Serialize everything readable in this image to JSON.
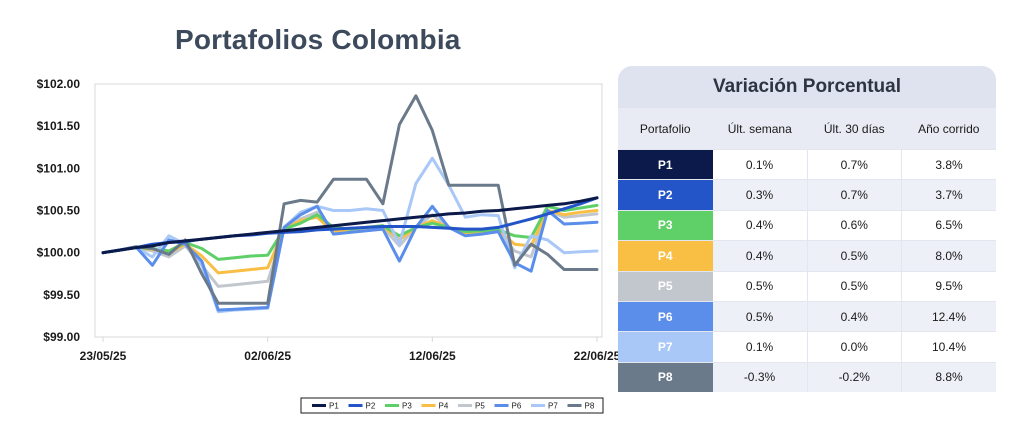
{
  "title": "Portafolios Colombia",
  "table": {
    "title": "Variación Porcentual",
    "headers": [
      "Portafolio",
      "Últ. semana",
      "Últ. 30 días",
      "Año corrido"
    ],
    "rows": [
      {
        "label": "P1",
        "color": "#0b1a4a",
        "semana": "0.1%",
        "dias30": "0.7%",
        "ano": "3.8%"
      },
      {
        "label": "P2",
        "color": "#2355c8",
        "semana": "0.3%",
        "dias30": "0.7%",
        "ano": "3.7%"
      },
      {
        "label": "P3",
        "color": "#5fd068",
        "semana": "0.4%",
        "dias30": "0.6%",
        "ano": "6.5%"
      },
      {
        "label": "P4",
        "color": "#f9bf45",
        "semana": "0.4%",
        "dias30": "0.5%",
        "ano": "8.0%"
      },
      {
        "label": "P5",
        "color": "#c2c7ce",
        "semana": "0.5%",
        "dias30": "0.5%",
        "ano": "9.5%"
      },
      {
        "label": "P6",
        "color": "#5b8eea",
        "semana": "0.5%",
        "dias30": "0.4%",
        "ano": "12.4%"
      },
      {
        "label": "P7",
        "color": "#a9c8f8",
        "semana": "0.1%",
        "dias30": "0.0%",
        "ano": "10.4%"
      },
      {
        "label": "P8",
        "color": "#6a7a8a",
        "semana": "-0.3%",
        "dias30": "-0.2%",
        "ano": "8.8%"
      }
    ]
  },
  "chart_data": {
    "type": "line",
    "title": "Portafolios Colombia",
    "y_tick_labels": [
      "$102.00",
      "$101.50",
      "$101.00",
      "$100.50",
      "$100.00",
      "$99.50",
      "$99.00"
    ],
    "y_ticks": [
      102.0,
      101.5,
      101.0,
      100.5,
      100.0,
      99.5,
      99.0
    ],
    "ylim": [
      99.0,
      102.0
    ],
    "x_tick_labels": [
      "23/05/25",
      "02/06/25",
      "12/06/25",
      "22/06/25"
    ],
    "x_tick_index": [
      0,
      10,
      20,
      30
    ],
    "x_count": 31,
    "grid": "vertical-gridlines-none",
    "legend": "bottom-center",
    "series": [
      {
        "name": "P1",
        "color": "#0b1a4a",
        "values": [
          100.0,
          100.03,
          100.06,
          100.08,
          100.12,
          100.14,
          100.16,
          100.18,
          100.2,
          100.22,
          100.24,
          100.26,
          100.28,
          100.3,
          100.32,
          100.34,
          100.36,
          100.38,
          100.4,
          100.42,
          100.44,
          100.46,
          100.47,
          100.49,
          100.5,
          100.52,
          100.54,
          100.56,
          100.58,
          100.61,
          100.65
        ]
      },
      {
        "name": "P2",
        "color": "#2355c8",
        "values": [
          100.0,
          100.03,
          100.06,
          100.1,
          100.12,
          100.13,
          100.16,
          100.18,
          100.2,
          100.21,
          100.23,
          100.24,
          100.25,
          100.27,
          100.28,
          100.29,
          100.3,
          100.31,
          100.31,
          100.31,
          100.3,
          100.29,
          100.28,
          100.28,
          100.3,
          100.35,
          100.4,
          100.46,
          100.52,
          100.58,
          100.65
        ]
      },
      {
        "name": "P3",
        "color": "#5fd068",
        "values": [
          100.0,
          100.03,
          100.06,
          100.05,
          100.02,
          100.12,
          100.05,
          99.92,
          99.94,
          99.96,
          99.97,
          100.28,
          100.35,
          100.45,
          100.3,
          100.28,
          100.3,
          100.32,
          100.2,
          100.3,
          100.35,
          100.3,
          100.25,
          100.26,
          100.27,
          100.2,
          100.18,
          100.55,
          100.5,
          100.53,
          100.56
        ]
      },
      {
        "name": "P4",
        "color": "#f9bf45",
        "values": [
          100.0,
          100.03,
          100.06,
          100.04,
          100.0,
          100.1,
          99.96,
          99.76,
          99.78,
          99.8,
          99.82,
          100.28,
          100.38,
          100.42,
          100.25,
          100.28,
          100.3,
          100.32,
          100.15,
          100.3,
          100.38,
          100.3,
          100.23,
          100.25,
          100.26,
          100.1,
          100.08,
          100.5,
          100.45,
          100.48,
          100.5
        ]
      },
      {
        "name": "P5",
        "color": "#c2c7ce",
        "values": [
          100.0,
          100.03,
          100.06,
          100.02,
          99.95,
          100.08,
          99.85,
          99.6,
          99.62,
          99.64,
          99.66,
          100.26,
          100.4,
          100.48,
          100.24,
          100.26,
          100.28,
          100.3,
          100.08,
          100.3,
          100.45,
          100.3,
          100.22,
          100.24,
          100.25,
          100.02,
          99.95,
          100.5,
          100.42,
          100.44,
          100.46
        ]
      },
      {
        "name": "P6",
        "color": "#5b8eea",
        "values": [
          100.0,
          100.03,
          100.07,
          99.85,
          100.15,
          100.1,
          99.9,
          99.32,
          99.33,
          99.34,
          99.35,
          100.3,
          100.45,
          100.55,
          100.22,
          100.24,
          100.26,
          100.28,
          99.9,
          100.3,
          100.55,
          100.3,
          100.2,
          100.22,
          100.25,
          99.88,
          99.78,
          100.5,
          100.34,
          100.35,
          100.36
        ]
      },
      {
        "name": "P7",
        "color": "#a9c8f8",
        "values": [
          100.0,
          100.03,
          100.06,
          99.95,
          100.2,
          100.1,
          99.85,
          99.3,
          99.32,
          99.33,
          99.34,
          100.3,
          100.48,
          100.55,
          100.5,
          100.5,
          100.52,
          100.5,
          100.1,
          100.82,
          101.12,
          100.8,
          100.42,
          100.45,
          100.44,
          99.82,
          100.2,
          100.15,
          100.0,
          100.01,
          100.02
        ]
      },
      {
        "name": "P8",
        "color": "#6a7a8a",
        "values": [
          100.0,
          100.03,
          100.07,
          100.05,
          99.98,
          100.15,
          99.75,
          99.4,
          99.4,
          99.4,
          99.4,
          100.58,
          100.62,
          100.6,
          100.87,
          100.87,
          100.87,
          100.58,
          101.52,
          101.86,
          101.45,
          100.8,
          100.8,
          100.8,
          100.8,
          99.85,
          100.1,
          99.98,
          99.8,
          99.8,
          99.8
        ]
      }
    ]
  }
}
